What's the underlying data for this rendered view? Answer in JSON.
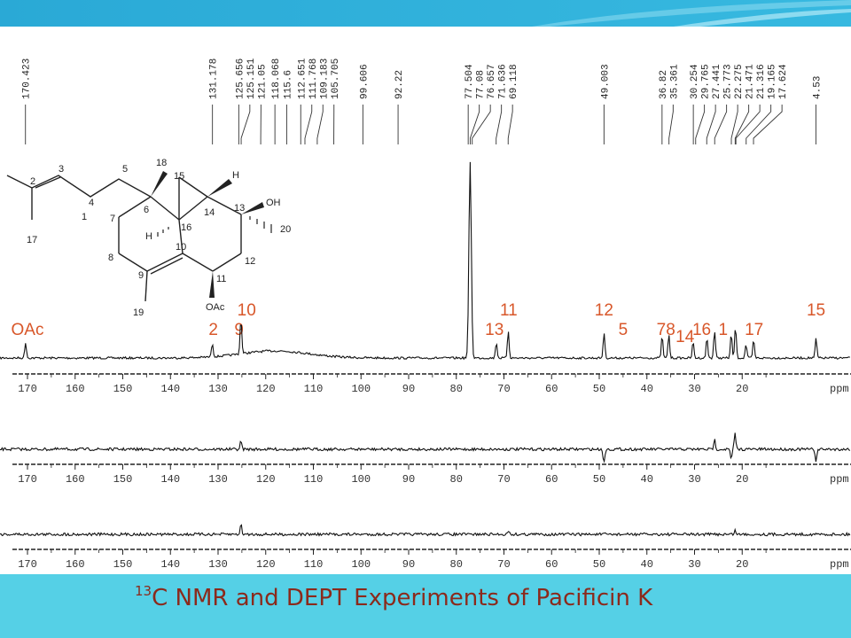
{
  "caption": {
    "sup": "13",
    "text": "C NMR and DEPT Experiments of Pacificin K"
  },
  "colors": {
    "header": "#2aa9d6",
    "footer": "#55d0e6",
    "caption": "#8b2a1c",
    "labels": "#d8572a"
  },
  "chart_data": {
    "type": "line",
    "xlabel": "ppm",
    "xlim": [
      174,
      0
    ],
    "ticks": [
      170,
      160,
      150,
      140,
      130,
      120,
      110,
      100,
      90,
      80,
      70,
      60,
      50,
      40,
      30,
      20
    ],
    "axis_label_visible": "ppm",
    "peak_list": [
      "170.423",
      "131.178",
      "125.656",
      "125.151",
      "121.050",
      "118.068",
      "115.600",
      "112.651",
      "111.768",
      "109.183",
      "105.705",
      "99.606",
      "92.220",
      "77.504",
      "77.080",
      "76.657",
      "71.636",
      "69.118",
      "49.003",
      "36.820",
      "35.361",
      "30.254",
      "29.765",
      "27.441",
      "25.773",
      "22.275",
      "21.471",
      "21.316",
      "19.165",
      "17.624",
      "4.530"
    ],
    "carbon_13": [
      {
        "shift": 170.4,
        "h": 0.08
      },
      {
        "shift": 131.2,
        "h": 0.07
      },
      {
        "shift": 125.2,
        "h": 0.18
      },
      {
        "shift": 77.1,
        "h": 1.0
      },
      {
        "shift": 71.6,
        "h": 0.08
      },
      {
        "shift": 69.1,
        "h": 0.14
      },
      {
        "shift": 49.0,
        "h": 0.13
      },
      {
        "shift": 36.8,
        "h": 0.11
      },
      {
        "shift": 35.4,
        "h": 0.12
      },
      {
        "shift": 30.3,
        "h": 0.08
      },
      {
        "shift": 27.4,
        "h": 0.1
      },
      {
        "shift": 25.8,
        "h": 0.14
      },
      {
        "shift": 22.3,
        "h": 0.12
      },
      {
        "shift": 21.4,
        "h": 0.16
      },
      {
        "shift": 19.2,
        "h": 0.07
      },
      {
        "shift": 17.6,
        "h": 0.09
      },
      {
        "shift": 4.5,
        "h": 0.1
      }
    ],
    "dept_1": [
      {
        "shift": 125.2,
        "h": 0.4
      },
      {
        "shift": 49.0,
        "h": -0.7
      },
      {
        "shift": 25.8,
        "h": 0.5
      },
      {
        "shift": 21.5,
        "h": 0.8
      },
      {
        "shift": 22.3,
        "h": -0.5
      },
      {
        "shift": 4.5,
        "h": -0.6
      }
    ],
    "dept_2": [
      {
        "shift": 125.2,
        "h": 0.5
      },
      {
        "shift": 69.1,
        "h": 0.2
      },
      {
        "shift": 21.5,
        "h": 0.2
      }
    ],
    "assignments": [
      {
        "label": "OAc",
        "shift": 170.0,
        "row": 1
      },
      {
        "label": "2",
        "shift": 131.0,
        "row": 1
      },
      {
        "label": "9",
        "shift": 125.6,
        "row": 1
      },
      {
        "label": "10",
        "shift": 124.0,
        "row": 0
      },
      {
        "label": "13",
        "shift": 72.0,
        "row": 1
      },
      {
        "label": "11",
        "shift": 69.0,
        "row": 0
      },
      {
        "label": "12",
        "shift": 49.0,
        "row": 0
      },
      {
        "label": "5",
        "shift": 45.0,
        "row": 1
      },
      {
        "label": "78",
        "shift": 36.0,
        "row": 1
      },
      {
        "label": "16",
        "shift": 28.5,
        "row": 1
      },
      {
        "label": "1",
        "shift": 24.0,
        "row": 1
      },
      {
        "label": "14",
        "shift": 32.0,
        "row": 2
      },
      {
        "label": "17",
        "shift": 17.5,
        "row": 1
      },
      {
        "label": "15",
        "shift": 4.5,
        "row": 0
      }
    ]
  },
  "structure": {
    "atoms": [
      "1",
      "2",
      "3",
      "4",
      "5",
      "6",
      "7",
      "8",
      "9",
      "10",
      "11",
      "12",
      "13",
      "14",
      "15",
      "16",
      "17",
      "18",
      "19",
      "20"
    ],
    "groups": {
      "oh": "OH",
      "oac": "OAc",
      "h1": "H",
      "h2": "H"
    }
  }
}
